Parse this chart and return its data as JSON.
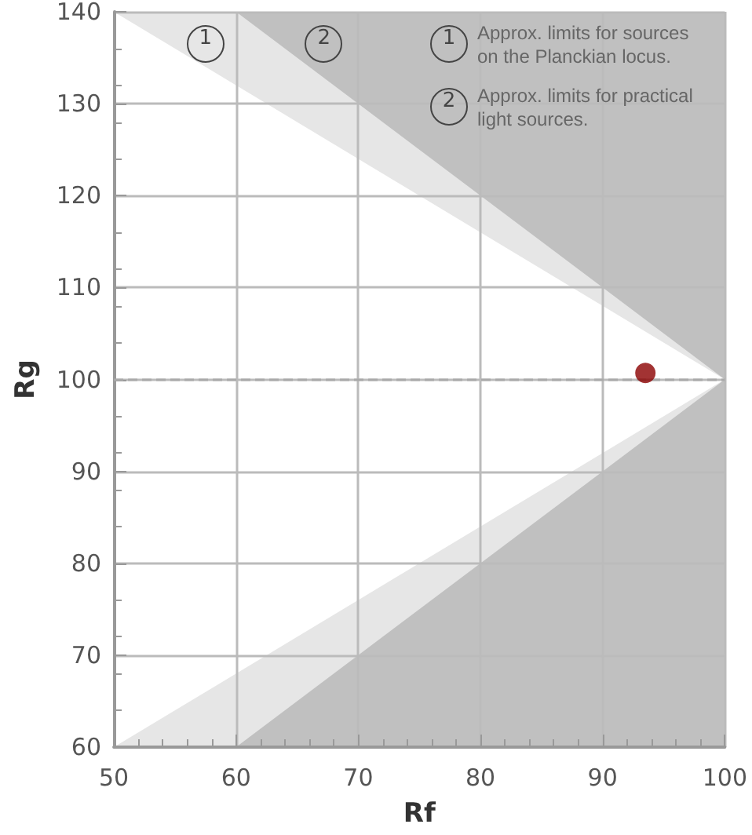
{
  "chart_data": {
    "type": "scatter",
    "xlabel": "Rf",
    "ylabel": "Rg",
    "xlim": [
      50,
      100
    ],
    "xticks": [
      50,
      60,
      70,
      80,
      90,
      100
    ],
    "ylim": [
      60,
      140
    ],
    "yticks": [
      60,
      70,
      80,
      90,
      100,
      110,
      120,
      130,
      140
    ],
    "grid": true,
    "series": [
      {
        "type": "area",
        "color": "#e6e6e6",
        "x": [
          50,
          100,
          100,
          50,
          100
        ],
        "values": [
          140,
          140,
          60,
          60,
          100
        ]
      },
      {
        "type": "area",
        "color": "#c0c0c0",
        "x": [
          60,
          100,
          100,
          60,
          100
        ],
        "values": [
          140,
          140,
          60,
          60,
          100
        ]
      },
      {
        "color": "#8b0000",
        "marker": "circle",
        "x": [
          93.5
        ],
        "values": [
          100.7
        ]
      }
    ],
    "ref_lines": [
      {
        "axis": "y",
        "value": 100,
        "color": "#aaaaaa",
        "line_style": "dashed"
      }
    ],
    "annotations": [
      {
        "text": "1",
        "x": 57.5,
        "y": 136.5
      },
      {
        "text": "2",
        "x": 67.2,
        "y": 136.5
      },
      "1",
      "Approx. limits for sources on the Planckian locus.",
      "2",
      "Approx. limits for practical light sources."
    ]
  }
}
